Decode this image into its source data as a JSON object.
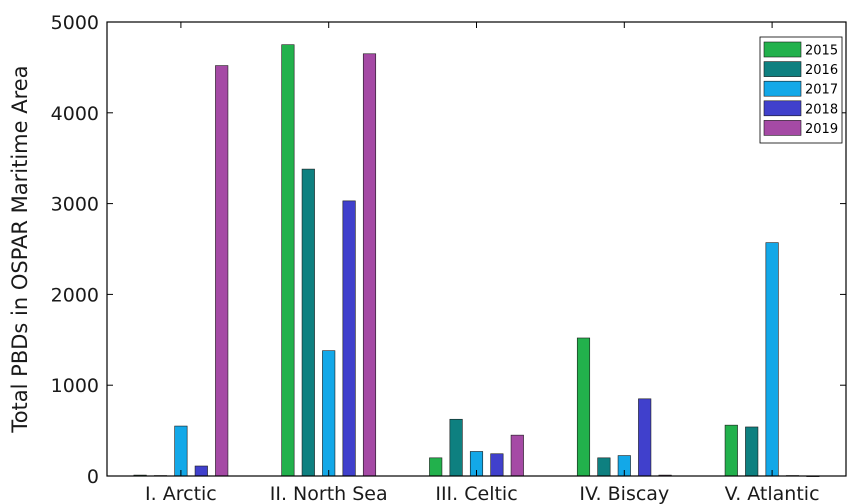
{
  "chart_data": {
    "type": "bar",
    "ylabel": "Total PBDs in OSPAR Maritime Area",
    "xlabel": "",
    "title": "",
    "ylim": [
      0,
      5000
    ],
    "yticks": [
      0,
      1000,
      2000,
      3000,
      4000,
      5000
    ],
    "grid": false,
    "legend_position": "top-right",
    "categories": [
      "I. Arctic",
      "II. North Sea",
      "III. Celtic",
      "IV. Biscay",
      "V. Atlantic"
    ],
    "series": [
      {
        "name": "2015",
        "color": "#22b14c",
        "values": [
          10,
          4750,
          200,
          1520,
          560
        ]
      },
      {
        "name": "2016",
        "color": "#0e8080",
        "values": [
          5,
          3380,
          625,
          200,
          540
        ]
      },
      {
        "name": "2017",
        "color": "#13a8e8",
        "values": [
          550,
          1380,
          270,
          225,
          2570
        ]
      },
      {
        "name": "2018",
        "color": "#4040cc",
        "values": [
          110,
          3030,
          245,
          850,
          5
        ]
      },
      {
        "name": "2019",
        "color": "#a54aa5",
        "values": [
          4520,
          4650,
          450,
          10,
          0
        ]
      }
    ]
  }
}
